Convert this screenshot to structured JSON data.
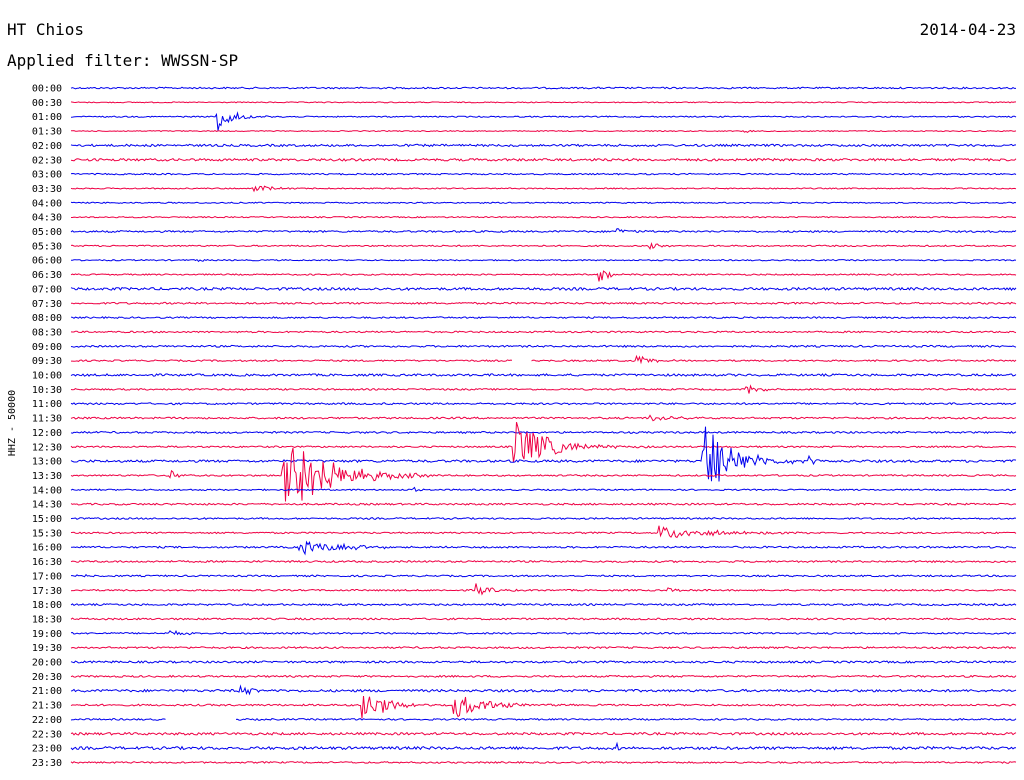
{
  "header": {
    "station": "HT Chios",
    "date": "2014-04-23",
    "filter": "Applied filter: WWSSN-SP"
  },
  "channel_label": "HHZ - 50000",
  "colors": {
    "blue": "#0000ee",
    "red": "#ee0044"
  },
  "chart_data": {
    "type": "line",
    "title": "HT Chios",
    "ylabel": "HHZ - 50000",
    "xlim_minutes": [
      0,
      30
    ],
    "grid": false,
    "rows": [
      "00:00",
      "00:30",
      "01:00",
      "01:30",
      "02:00",
      "02:30",
      "03:00",
      "03:30",
      "04:00",
      "04:30",
      "05:00",
      "05:30",
      "06:00",
      "06:30",
      "07:00",
      "07:30",
      "08:00",
      "08:30",
      "09:00",
      "09:30",
      "10:00",
      "10:30",
      "11:00",
      "11:30",
      "12:00",
      "12:30",
      "13:00",
      "13:30",
      "14:00",
      "14:30",
      "15:00",
      "15:30",
      "16:00",
      "16:30",
      "17:00",
      "17:30",
      "18:00",
      "18:30",
      "19:00",
      "19:30",
      "20:00",
      "20:30",
      "21:00",
      "21:30",
      "22:00",
      "22:30",
      "23:00",
      "23:30"
    ],
    "noise": [
      0.8,
      0.5,
      0.6,
      0.5,
      1.1,
      1.2,
      0.7,
      0.6,
      0.6,
      0.6,
      0.9,
      0.7,
      0.6,
      0.7,
      1.3,
      0.9,
      0.8,
      0.8,
      0.9,
      0.8,
      1.1,
      0.8,
      0.9,
      0.9,
      0.9,
      0.8,
      1.2,
      0.8,
      0.7,
      0.9,
      0.8,
      0.8,
      0.9,
      0.9,
      0.8,
      0.8,
      0.9,
      0.9,
      0.8,
      0.9,
      1.0,
      0.9,
      1.2,
      0.9,
      0.8,
      1.2,
      1.4,
      0.8
    ],
    "events": [
      {
        "row": 2,
        "t": 4.6,
        "amp": 16,
        "dur": 0.8
      },
      {
        "row": 3,
        "t": 21.3,
        "amp": 3,
        "dur": 0.4
      },
      {
        "row": 7,
        "t": 5.8,
        "amp": 6,
        "dur": 0.6
      },
      {
        "row": 10,
        "t": 17.3,
        "amp": 4,
        "dur": 0.6
      },
      {
        "row": 11,
        "t": 18.3,
        "amp": 3,
        "dur": 0.6
      },
      {
        "row": 12,
        "t": 4.0,
        "amp": 4,
        "dur": 0.2
      },
      {
        "row": 13,
        "t": 16.7,
        "amp": 8,
        "dur": 0.5
      },
      {
        "row": 19,
        "t": 17.9,
        "amp": 8,
        "dur": 0.6
      },
      {
        "row": 21,
        "t": 21.4,
        "amp": 6,
        "dur": 0.6
      },
      {
        "row": 23,
        "t": 18.3,
        "amp": 4,
        "dur": 1.0
      },
      {
        "row": 25,
        "t": 14.0,
        "amp": 28,
        "dur": 1.6
      },
      {
        "row": 26,
        "t": 20.0,
        "amp": 40,
        "dur": 1.4
      },
      {
        "row": 26,
        "t": 23.4,
        "amp": 6,
        "dur": 0.4
      },
      {
        "row": 27,
        "t": 3.1,
        "amp": 6,
        "dur": 0.4
      },
      {
        "row": 27,
        "t": 6.7,
        "amp": 48,
        "dur": 2.0
      },
      {
        "row": 28,
        "t": 10.8,
        "amp": 5,
        "dur": 0.2
      },
      {
        "row": 31,
        "t": 18.6,
        "amp": 7,
        "dur": 2.4
      },
      {
        "row": 32,
        "t": 7.2,
        "amp": 7,
        "dur": 2.2
      },
      {
        "row": 34,
        "t": 0.1,
        "amp": 4,
        "dur": 0.4
      },
      {
        "row": 35,
        "t": 12.8,
        "amp": 7,
        "dur": 0.6
      },
      {
        "row": 35,
        "t": 18.9,
        "amp": 3,
        "dur": 0.4
      },
      {
        "row": 38,
        "t": 3.1,
        "amp": 3,
        "dur": 0.7
      },
      {
        "row": 42,
        "t": 5.3,
        "amp": 7,
        "dur": 0.6
      },
      {
        "row": 43,
        "t": 9.2,
        "amp": 22,
        "dur": 1.0
      },
      {
        "row": 43,
        "t": 12.1,
        "amp": 14,
        "dur": 1.4
      },
      {
        "row": 46,
        "t": 17.3,
        "amp": 4,
        "dur": 0.4
      }
    ],
    "gaps": [
      {
        "row": 19,
        "from": 14.0,
        "to": 14.6
      },
      {
        "row": 44,
        "from": 3.0,
        "to": 5.2
      }
    ]
  }
}
